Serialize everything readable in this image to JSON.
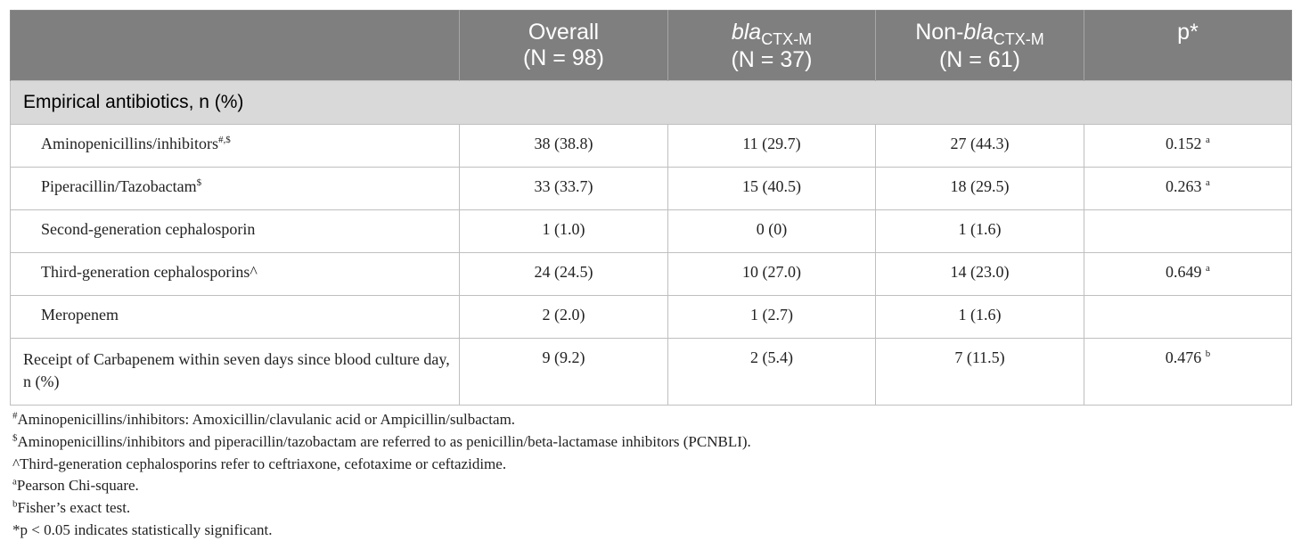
{
  "header": {
    "col0": "",
    "overall": {
      "line1": "Overall",
      "line2": "(N = 98)"
    },
    "bla": {
      "italic": "bla",
      "sub": "CTX-M",
      "line2": "(N = 37)"
    },
    "nonbla": {
      "prefix": "Non-",
      "italic": "bla",
      "sub": "CTX-M",
      "line2": "(N = 61)"
    },
    "p": "p*"
  },
  "section": {
    "label": "Empirical antibiotics, n (%)"
  },
  "rows": [
    {
      "label": "Aminopenicillins/inhibitors",
      "label_sup": "#,$",
      "overall": "38 (38.8)",
      "bla": "11 (29.7)",
      "nonbla": "27 (44.3)",
      "p": "0.152",
      "p_sup": "a"
    },
    {
      "label": "Piperacillin/Tazobactam",
      "label_sup": "$",
      "overall": "33 (33.7)",
      "bla": "15 (40.5)",
      "nonbla": "18 (29.5)",
      "p": "0.263",
      "p_sup": "a"
    },
    {
      "label": "Second-generation cephalosporin",
      "label_sup": "",
      "overall": "1 (1.0)",
      "bla": "0 (0)",
      "nonbla": "1 (1.6)",
      "p": "",
      "p_sup": ""
    },
    {
      "label": "Third-generation cephalosporins^",
      "label_sup": "",
      "overall": "24 (24.5)",
      "bla": "10 (27.0)",
      "nonbla": "14 (23.0)",
      "p": "0.649",
      "p_sup": "a"
    },
    {
      "label": "Meropenem",
      "label_sup": "",
      "overall": "2 (2.0)",
      "bla": "1 (2.7)",
      "nonbla": "1 (1.6)",
      "p": "",
      "p_sup": ""
    },
    {
      "label": "Receipt of Carbapenem within seven days since blood culture day, n (%)",
      "label_sup": "",
      "overall": "9 (9.2)",
      "bla": "2 (5.4)",
      "nonbla": "7 (11.5)",
      "p": "0.476",
      "p_sup": "b"
    }
  ],
  "notes": [
    {
      "sup": "#",
      "text": "Aminopenicillins/inhibitors: Amoxicillin/clavulanic acid or Ampicillin/sulbactam."
    },
    {
      "sup": "$",
      "text": "Aminopenicillins/inhibitors and piperacillin/tazobactam are referred to as penicillin/beta-lactamase inhibitors (PCNBLI)."
    },
    {
      "sup": "",
      "text": "^Third-generation cephalosporins refer to ceftriaxone, cefotaxime or ceftazidime."
    },
    {
      "sup": "a",
      "text": "Pearson Chi-square."
    },
    {
      "sup": "b",
      "text": "Fisher’s exact test."
    },
    {
      "sup": "",
      "text": "*p < 0.05 indicates statistically significant."
    }
  ]
}
